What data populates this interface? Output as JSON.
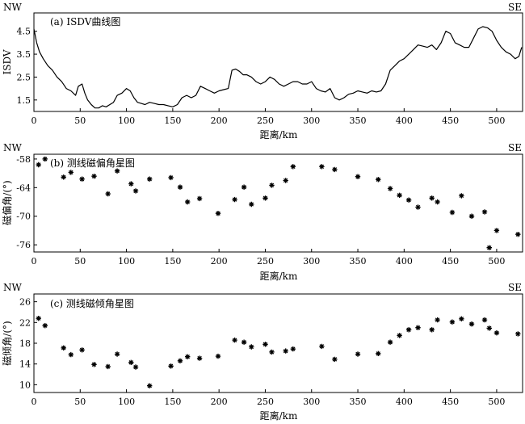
{
  "chart_data": [
    {
      "type": "line",
      "title": "(a) ISDV曲线图",
      "corner_left": "NW",
      "corner_right": "SE",
      "xlabel": "距离/km",
      "ylabel": "ISDV",
      "xlim": [
        0,
        528
      ],
      "ylim": [
        1.0,
        5.3
      ],
      "xticks": [
        0,
        50,
        100,
        150,
        200,
        250,
        300,
        350,
        400,
        450,
        500
      ],
      "yticks": [
        1.5,
        2.5,
        3.5,
        4.5
      ],
      "ytick_labels": [
        "1.5",
        "2.5",
        "3.5",
        "4.5"
      ],
      "series": [
        {
          "x": [
            0,
            3,
            6,
            10,
            15,
            20,
            25,
            30,
            35,
            40,
            45,
            48,
            52,
            55,
            58,
            62,
            66,
            70,
            74,
            78,
            82,
            86,
            90,
            95,
            100,
            104,
            108,
            112,
            116,
            120,
            125,
            130,
            135,
            140,
            145,
            150,
            155,
            160,
            165,
            170,
            175,
            180,
            185,
            190,
            195,
            200,
            205,
            210,
            214,
            218,
            222,
            226,
            230,
            235,
            240,
            245,
            250,
            255,
            260,
            265,
            270,
            275,
            280,
            285,
            290,
            295,
            300,
            305,
            310,
            315,
            320,
            325,
            330,
            335,
            340,
            345,
            350,
            355,
            360,
            365,
            370,
            375,
            380,
            385,
            390,
            395,
            400,
            405,
            410,
            415,
            420,
            425,
            430,
            435,
            440,
            445,
            450,
            455,
            460,
            465,
            470,
            475,
            480,
            485,
            490,
            495,
            500,
            505,
            510,
            515,
            520,
            524,
            527
          ],
          "y": [
            4.6,
            4.0,
            3.6,
            3.3,
            3.0,
            2.8,
            2.5,
            2.3,
            2.0,
            1.9,
            1.7,
            2.1,
            2.2,
            1.8,
            1.5,
            1.3,
            1.15,
            1.15,
            1.25,
            1.2,
            1.3,
            1.4,
            1.7,
            1.8,
            2.0,
            1.9,
            1.6,
            1.4,
            1.35,
            1.3,
            1.4,
            1.35,
            1.3,
            1.3,
            1.25,
            1.2,
            1.3,
            1.6,
            1.7,
            1.6,
            1.7,
            2.1,
            2.0,
            1.9,
            1.8,
            1.9,
            1.95,
            2.0,
            2.8,
            2.85,
            2.75,
            2.6,
            2.6,
            2.5,
            2.3,
            2.2,
            2.3,
            2.5,
            2.4,
            2.2,
            2.1,
            2.2,
            2.3,
            2.3,
            2.2,
            2.2,
            2.3,
            2.0,
            1.9,
            1.85,
            2.0,
            1.6,
            1.5,
            1.6,
            1.75,
            1.8,
            1.9,
            1.85,
            1.8,
            1.9,
            1.85,
            1.9,
            2.2,
            2.8,
            3.0,
            3.2,
            3.3,
            3.5,
            3.7,
            3.9,
            3.85,
            3.8,
            3.9,
            3.7,
            4.0,
            4.5,
            4.4,
            4.0,
            3.9,
            3.8,
            3.8,
            4.2,
            4.6,
            4.7,
            4.65,
            4.5,
            4.1,
            3.8,
            3.6,
            3.5,
            3.3,
            3.4,
            3.8
          ]
        }
      ]
    },
    {
      "type": "scatter",
      "title": "(b) 测线磁偏角星图",
      "corner_left": "NW",
      "corner_right": "SE",
      "xlabel": "距离/km",
      "ylabel": "磁偏角/(°)",
      "xlim": [
        0,
        528
      ],
      "ylim": [
        -77.5,
        -57
      ],
      "xticks": [
        0,
        50,
        100,
        150,
        200,
        250,
        300,
        350,
        400,
        450,
        500
      ],
      "yticks": [
        -58,
        -64,
        -70,
        -76
      ],
      "ytick_labels": [
        "-58",
        "-64",
        "-70",
        "-76"
      ],
      "series": [
        {
          "x": [
            5,
            12,
            32,
            40,
            52,
            65,
            80,
            90,
            105,
            110,
            125,
            148,
            158,
            166,
            179,
            199,
            217,
            227,
            235,
            250,
            257,
            272,
            280,
            311,
            325,
            350,
            372,
            385,
            395,
            405,
            415,
            430,
            436,
            452,
            462,
            473,
            487,
            492,
            500,
            523
          ],
          "y": [
            -59.2,
            -58.0,
            -61.8,
            -60.8,
            -62.2,
            -61.6,
            -65.3,
            -60.5,
            -63.2,
            -64.7,
            -62.2,
            -61.9,
            -63.9,
            -67.0,
            -66.3,
            -69.4,
            -66.5,
            -63.9,
            -67.5,
            -66.2,
            -63.5,
            -62.5,
            -59.6,
            -59.6,
            -60.2,
            -61.7,
            -62.3,
            -64.2,
            -65.6,
            -66.6,
            -68.1,
            -66.2,
            -67.0,
            -69.2,
            -65.7,
            -70.0,
            -69.1,
            -76.6,
            -73.0,
            -73.8
          ]
        }
      ]
    },
    {
      "type": "scatter",
      "title": "(c) 测线磁倾角星图",
      "corner_left": "NW",
      "corner_right": "SE",
      "xlabel": "距离/km",
      "ylabel": "磁倾角/(°)",
      "xlim": [
        0,
        528
      ],
      "ylim": [
        8.5,
        27.5
      ],
      "xticks": [
        0,
        50,
        100,
        150,
        200,
        250,
        300,
        350,
        400,
        450,
        500
      ],
      "yticks": [
        10,
        14,
        18,
        22,
        26
      ],
      "ytick_labels": [
        "10",
        "14",
        "18",
        "22",
        "26"
      ],
      "series": [
        {
          "x": [
            5,
            12,
            32,
            40,
            52,
            65,
            80,
            90,
            105,
            110,
            125,
            148,
            158,
            166,
            179,
            199,
            217,
            227,
            235,
            250,
            257,
            272,
            280,
            311,
            325,
            350,
            372,
            385,
            395,
            405,
            415,
            430,
            436,
            452,
            462,
            473,
            487,
            492,
            500,
            523
          ],
          "y": [
            22.8,
            21.4,
            17.1,
            15.8,
            16.7,
            13.9,
            13.5,
            15.9,
            14.3,
            13.4,
            9.8,
            13.6,
            14.6,
            15.4,
            15.1,
            15.5,
            18.6,
            18.2,
            17.3,
            17.8,
            16.3,
            16.5,
            16.9,
            17.4,
            14.9,
            15.9,
            16.0,
            18.2,
            19.5,
            20.6,
            21.0,
            20.6,
            22.5,
            22.1,
            22.7,
            21.7,
            22.5,
            20.9,
            20.0,
            19.8
          ]
        }
      ]
    }
  ]
}
